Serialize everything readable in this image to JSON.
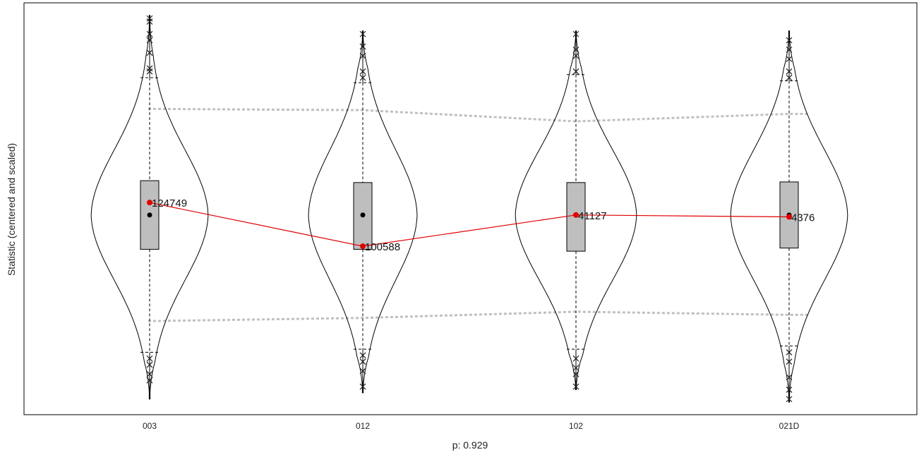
{
  "chart_data": {
    "type": "violin",
    "xlabel": "p: 0.929",
    "ylabel": "Statistic (centered and scaled)",
    "ylim": [
      -3.2,
      3.4
    ],
    "categories": [
      "003",
      "012",
      "102",
      "021D"
    ],
    "groups": [
      {
        "name": "003",
        "q1": -0.55,
        "median": 0.0,
        "q3": 0.55,
        "whisker_low": -2.2,
        "whisker_high": 2.2,
        "min": -2.95,
        "max": 3.2,
        "observed": 0.2,
        "observed_label": "124749",
        "violin_half_width": 0.28,
        "outliers_high": [
          2.3,
          2.35,
          2.6,
          2.8,
          2.9,
          3.1,
          3.15
        ],
        "outliers_low": [
          -2.3,
          -2.4,
          -2.55,
          -2.65
        ]
      },
      {
        "name": "012",
        "q1": -0.55,
        "median": 0.0,
        "q3": 0.52,
        "whisker_low": -2.15,
        "whisker_high": 2.12,
        "min": -2.85,
        "max": 2.95,
        "observed": -0.5,
        "observed_label": "100588",
        "violin_half_width": 0.26,
        "outliers_high": [
          2.2,
          2.3,
          2.55,
          2.7,
          2.9
        ],
        "outliers_low": [
          -2.25,
          -2.35,
          -2.5,
          -2.75
        ]
      },
      {
        "name": "102",
        "q1": -0.58,
        "median": 0.0,
        "q3": 0.52,
        "whisker_low": -2.15,
        "whisker_high": 2.25,
        "min": -2.8,
        "max": 2.95,
        "observed": 0.0,
        "observed_label": "41127",
        "violin_half_width": 0.29,
        "outliers_high": [
          2.3,
          2.55,
          2.65,
          2.9
        ],
        "outliers_low": [
          -2.3,
          -2.45,
          -2.55,
          -2.75
        ]
      },
      {
        "name": "021D",
        "q1": -0.53,
        "median": 0.0,
        "q3": 0.53,
        "whisker_low": -2.1,
        "whisker_high": 2.15,
        "min": -3.0,
        "max": 2.95,
        "observed": -0.03,
        "observed_label": "4376",
        "violin_half_width": 0.28,
        "outliers_high": [
          2.2,
          2.3,
          2.5,
          2.65,
          2.8
        ],
        "outliers_low": [
          -2.2,
          -2.35,
          -2.6,
          -2.8,
          -2.95
        ]
      }
    ],
    "band_upper": [
      1.7,
      1.68,
      1.5,
      1.62
    ],
    "band_lower": [
      -1.7,
      -1.65,
      -1.55,
      -1.6
    ],
    "colors": {
      "observed": "#e00000",
      "box_fill": "#bebebe",
      "band": "#c0c0c0",
      "violin": "#000000"
    },
    "grid": false
  }
}
